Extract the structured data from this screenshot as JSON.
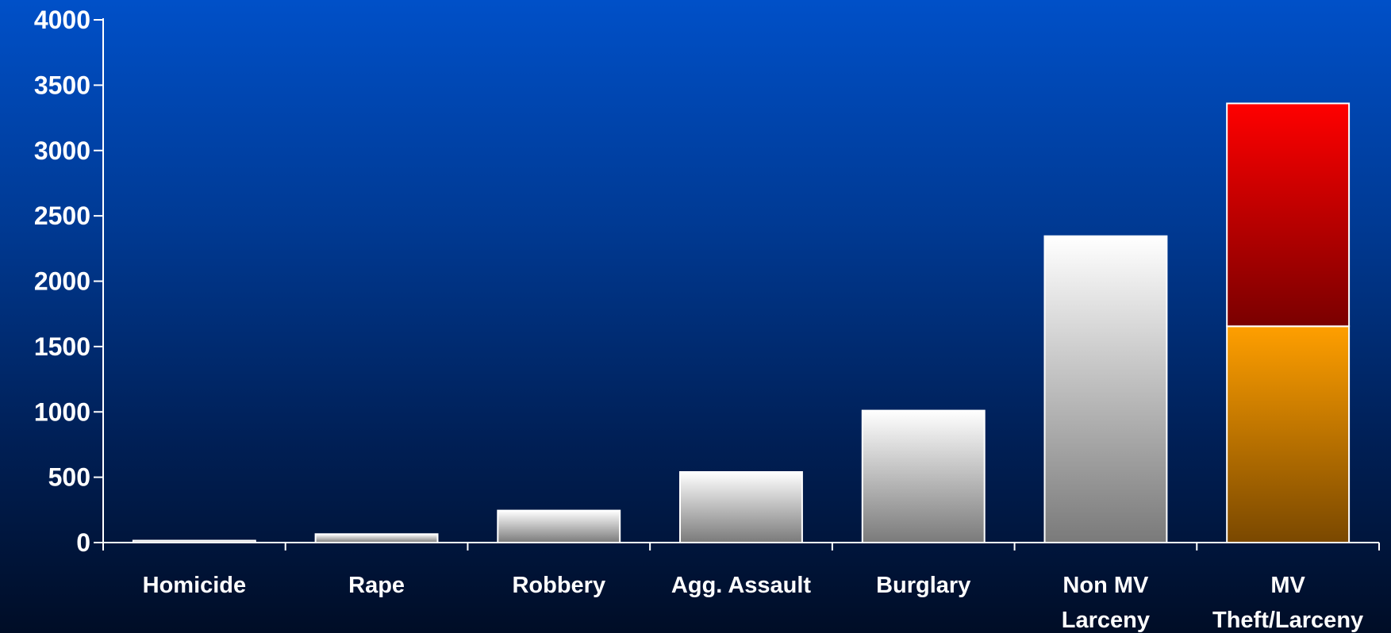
{
  "chart_data": {
    "type": "bar",
    "title": "",
    "xlabel": "",
    "ylabel": "",
    "ylim": [
      0,
      4000
    ],
    "yticks": [
      0,
      500,
      1000,
      1500,
      2000,
      2500,
      3000,
      3500,
      4000
    ],
    "ytick_labels": [
      "0",
      "500",
      "1000",
      "1500",
      "2000",
      "2500",
      "3000",
      "3500",
      "4000"
    ],
    "categories": [
      [
        "Homicide"
      ],
      [
        "Rape"
      ],
      [
        "Robbery"
      ],
      [
        "Agg. Assault"
      ],
      [
        "Burglary"
      ],
      [
        "Non MV",
        "Larceny"
      ],
      [
        "MV",
        "Theft/Larceny"
      ]
    ],
    "series": [
      {
        "values": [
          15,
          65,
          245,
          540,
          1010,
          2345,
          1655
        ],
        "color": "#d0d0d0"
      },
      {
        "values": [
          0,
          0,
          0,
          0,
          0,
          0,
          1705
        ],
        "color": "#cc0000"
      }
    ],
    "stacked": true,
    "grid": false,
    "colors": {
      "neutral_top": "#ffffff",
      "neutral_bottom": "#7a7a7a",
      "orange_top": "#ff9f00",
      "orange_bottom": "#7a4800",
      "red_top": "#ff0000",
      "red_bottom": "#7a0000"
    }
  }
}
